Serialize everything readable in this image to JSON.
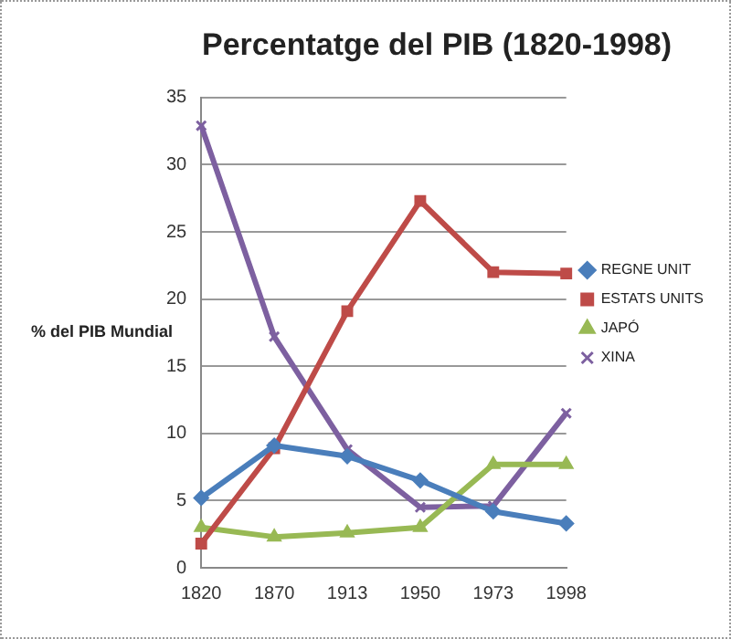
{
  "chart_data": {
    "type": "line",
    "title": "Percentatge del PIB (1820-1998)",
    "ylabel": "% del PIB Mundial",
    "categories": [
      "1820",
      "1870",
      "1913",
      "1950",
      "1973",
      "1998"
    ],
    "series": [
      {
        "name": "REGNE UNIT",
        "color": "#4a7ebb",
        "marker": "diamond",
        "values": [
          5.2,
          9.1,
          8.3,
          6.5,
          4.2,
          3.3
        ]
      },
      {
        "name": "ESTATS UNITS",
        "color": "#be4b48",
        "marker": "square",
        "values": [
          1.8,
          8.9,
          19.1,
          27.3,
          22.0,
          21.9
        ]
      },
      {
        "name": "JAPÓ",
        "color": "#98b954",
        "marker": "triangle",
        "values": [
          3.0,
          2.3,
          2.6,
          3.0,
          7.7,
          7.7
        ]
      },
      {
        "name": "XINA",
        "color": "#7d60a0",
        "marker": "cross",
        "values": [
          32.9,
          17.2,
          8.8,
          4.5,
          4.6,
          11.5
        ]
      }
    ],
    "ylim": [
      0,
      35
    ],
    "yticks": [
      0,
      5,
      10,
      15,
      20,
      25,
      30,
      35
    ],
    "grid": "y",
    "legend": "right"
  }
}
